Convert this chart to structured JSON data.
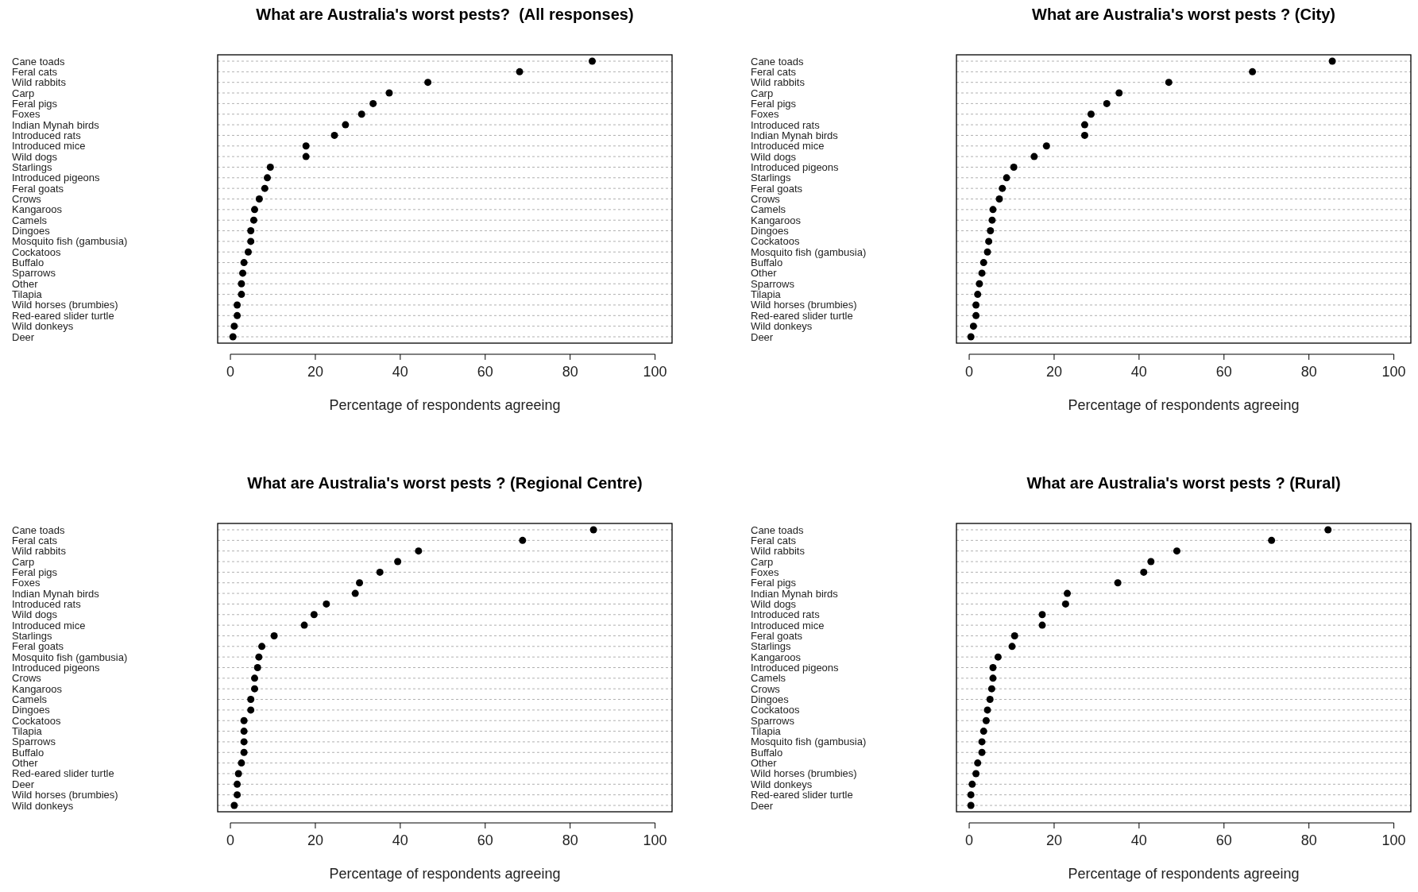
{
  "chart_data": [
    {
      "type": "scatter",
      "orientation": "horizontal",
      "title": "What are Australia's worst pests?  (All responses)",
      "xlabel": "Percentage of respondents agreeing",
      "marker": "circle",
      "grid": "y",
      "color": "#000000",
      "xlim": [
        -3,
        104
      ],
      "xticks": [
        0,
        20,
        40,
        60,
        80,
        100
      ],
      "categories": [
        "Cane toads",
        "Feral cats",
        "Wild rabbits",
        "Carp",
        "Feral pigs",
        "Foxes",
        "Indian Mynah birds",
        "Introduced rats",
        "Introduced mice",
        "Wild dogs",
        "Starlings",
        "Introduced pigeons",
        "Feral goats",
        "Crows",
        "Kangaroos",
        "Camels",
        "Dingoes",
        "Mosquito fish (gambusia)",
        "Cockatoos",
        "Buffalo",
        "Sparrows",
        "Other",
        "Tilapia",
        "Wild horses (brumbies)",
        "Red-eared slider turtle",
        "Wild donkeys",
        "Deer"
      ],
      "values": [
        85.2,
        68.1,
        46.5,
        37.4,
        33.6,
        30.9,
        27.1,
        24.5,
        17.8,
        17.8,
        9.4,
        8.7,
        8.1,
        6.8,
        5.7,
        5.5,
        4.8,
        4.8,
        4.2,
        3.2,
        2.9,
        2.6,
        2.6,
        1.6,
        1.6,
        0.9,
        0.6
      ]
    },
    {
      "type": "scatter",
      "orientation": "horizontal",
      "title": "What are Australia's worst pests ? (City)",
      "xlabel": "Percentage of respondents agreeing",
      "marker": "circle",
      "grid": "y",
      "color": "#000000",
      "xlim": [
        -3,
        104
      ],
      "xticks": [
        0,
        20,
        40,
        60,
        80,
        100
      ],
      "categories": [
        "Cane toads",
        "Feral cats",
        "Wild rabbits",
        "Carp",
        "Feral pigs",
        "Foxes",
        "Introduced rats",
        "Indian Mynah birds",
        "Introduced mice",
        "Wild dogs",
        "Introduced pigeons",
        "Starlings",
        "Feral goats",
        "Crows",
        "Camels",
        "Kangaroos",
        "Dingoes",
        "Cockatoos",
        "Mosquito fish (gambusia)",
        "Buffalo",
        "Other",
        "Sparrows",
        "Tilapia",
        "Wild horses (brumbies)",
        "Red-eared slider turtle",
        "Wild donkeys",
        "Deer"
      ],
      "values": [
        85.5,
        66.7,
        47.0,
        35.3,
        32.4,
        28.7,
        27.2,
        27.2,
        18.2,
        15.3,
        10.5,
        8.8,
        7.8,
        7.1,
        5.6,
        5.4,
        5.0,
        4.6,
        4.3,
        3.4,
        3.0,
        2.4,
        2.0,
        1.6,
        1.6,
        1.0,
        0.4
      ]
    },
    {
      "type": "scatter",
      "orientation": "horizontal",
      "title": "What are Australia's worst pests ? (Regional Centre)",
      "xlabel": "Percentage of respondents agreeing",
      "marker": "circle",
      "grid": "y",
      "color": "#000000",
      "xlim": [
        -3,
        104
      ],
      "xticks": [
        0,
        20,
        40,
        60,
        80,
        100
      ],
      "categories": [
        "Cane toads",
        "Feral cats",
        "Wild rabbits",
        "Carp",
        "Feral pigs",
        "Foxes",
        "Indian Mynah birds",
        "Introduced rats",
        "Wild dogs",
        "Introduced mice",
        "Starlings",
        "Feral goats",
        "Mosquito fish (gambusia)",
        "Introduced pigeons",
        "Crows",
        "Kangaroos",
        "Camels",
        "Dingoes",
        "Cockatoos",
        "Tilapia",
        "Sparrows",
        "Buffalo",
        "Other",
        "Red-eared slider turtle",
        "Deer",
        "Wild horses (brumbies)",
        "Wild donkeys"
      ],
      "values": [
        85.5,
        68.8,
        44.3,
        39.4,
        35.2,
        30.4,
        29.4,
        22.6,
        19.7,
        17.4,
        10.3,
        7.4,
        6.7,
        6.4,
        5.7,
        5.7,
        4.8,
        4.8,
        3.2,
        3.2,
        3.2,
        3.2,
        2.6,
        1.9,
        1.6,
        1.6,
        0.9
      ]
    },
    {
      "type": "scatter",
      "orientation": "horizontal",
      "title": "What are Australia's worst pests ? (Rural)",
      "xlabel": "Percentage of respondents agreeing",
      "marker": "circle",
      "grid": "y",
      "color": "#000000",
      "xlim": [
        -3,
        104
      ],
      "xticks": [
        0,
        20,
        40,
        60,
        80,
        100
      ],
      "categories": [
        "Cane toads",
        "Feral cats",
        "Wild rabbits",
        "Carp",
        "Foxes",
        "Feral pigs",
        "Indian Mynah birds",
        "Wild dogs",
        "Introduced rats",
        "Introduced mice",
        "Feral goats",
        "Starlings",
        "Kangaroos",
        "Introduced pigeons",
        "Camels",
        "Crows",
        "Dingoes",
        "Cockatoos",
        "Sparrows",
        "Tilapia",
        "Mosquito fish (gambusia)",
        "Buffalo",
        "Other",
        "Wild horses (brumbies)",
        "Wild donkeys",
        "Red-eared slider turtle",
        "Deer"
      ],
      "values": [
        84.5,
        71.2,
        48.9,
        42.8,
        41.1,
        35.0,
        23.1,
        22.7,
        17.2,
        17.2,
        10.7,
        10.1,
        6.8,
        5.6,
        5.6,
        5.3,
        4.9,
        4.3,
        4.0,
        3.4,
        3.0,
        3.0,
        2.0,
        1.6,
        0.7,
        0.4,
        0.4
      ]
    }
  ]
}
